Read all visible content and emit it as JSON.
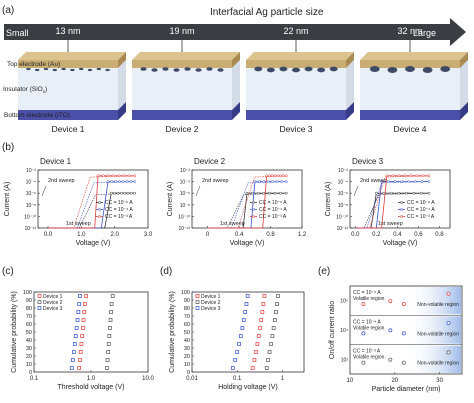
{
  "panel_a": {
    "letter": "(a)",
    "header": "Interfacial Ag particle size",
    "small": "Small",
    "large": "Large",
    "devices": [
      {
        "label": "Device 1",
        "size": "13 nm",
        "particles": 10
      },
      {
        "label": "Device 2",
        "size": "19 nm",
        "particles": 8
      },
      {
        "label": "Device 3",
        "size": "22 nm",
        "particles": 7
      },
      {
        "label": "Device 4",
        "size": "32 nm",
        "particles": 5
      }
    ],
    "layers": {
      "top": "Top electrode (Au)",
      "insulator_pre": "Insulator (SiO",
      "insulator_sub": "x",
      "insulator_post": ")",
      "bottom": "Bottom electrode (ITO)"
    },
    "colors": {
      "arrow": "#3a3d42",
      "au": "#c9ad73",
      "insulator": "#e9eff6",
      "ito": "#4a4fa8",
      "particle": "#3e4a66"
    }
  },
  "panel_b": {
    "letter": "(b)",
    "ylabel": "Current (A)",
    "xlabel": "Voltage (V)",
    "yticks": [
      "10⁻²",
      "10⁻⁴",
      "10⁻⁶",
      "10⁻⁸",
      "10⁻¹⁰",
      "10⁻¹²"
    ],
    "annot_2nd": "2nd sweep",
    "annot_1st": "1st sweep",
    "legend": [
      "CC = 10⁻⁶ A",
      "CC = 10⁻⁴ A",
      "CC = 10⁻³ A"
    ],
    "series_colors": [
      "#333333",
      "#3350cc",
      "#e03a3a"
    ],
    "plots": [
      {
        "title": "Device 1",
        "xmax": 3,
        "xticks": [
          "0.0",
          "1.0",
          "2.0",
          "3.0"
        ]
      },
      {
        "title": "Device 2",
        "xmax": 1.2,
        "xticks": [
          "0",
          "0.4",
          "0.8",
          "1.2"
        ]
      },
      {
        "title": "Device 3",
        "xmax": 1.0,
        "xticks": [
          "0.0",
          "0.2",
          "0.4",
          "0.6",
          "0.8"
        ]
      }
    ]
  },
  "panel_c": {
    "letter": "(c)",
    "ylabel": "Cumulative probability (%)",
    "xlabel": "Threshold voltage (V)",
    "xticks": [
      "0.1",
      "1.0",
      "10.0"
    ],
    "yticks": [
      "100",
      "90",
      "80",
      "70",
      "60",
      "50",
      "40",
      "30",
      "20",
      "10",
      "0"
    ],
    "legend": [
      "Device 1",
      "Device 2",
      "Device 3"
    ],
    "colors": [
      "#e03a3a",
      "#555555",
      "#3350cc"
    ]
  },
  "panel_d": {
    "letter": "(d)",
    "ylabel": "Cumulative probability (%)",
    "xlabel": "Holding voltage (V)",
    "xticks": [
      "0.01",
      "0.1",
      "1"
    ],
    "yticks": [
      "100",
      "90",
      "80",
      "70",
      "60",
      "50",
      "40",
      "30",
      "20",
      "10",
      "0"
    ],
    "legend": [
      "Device 1",
      "Device 2",
      "Device 3"
    ],
    "colors": [
      "#e03a3a",
      "#555555",
      "#3350cc"
    ]
  },
  "panel_e": {
    "letter": "(e)",
    "ylabel": "On/off current ratio",
    "xlabel": "Particle diameter (nm)",
    "xticks": [
      "10",
      "20",
      "30"
    ],
    "rows": [
      {
        "cc": "CC = 10⁻⁶ A",
        "volatile": "Volatile region",
        "nonvolatile": "Non-volatile region",
        "ytick": "10⁵"
      },
      {
        "cc": "CC = 10⁻⁴ A",
        "volatile": "Volatile region",
        "nonvolatile": "Non-volatile region",
        "ytick": "10⁴"
      },
      {
        "cc": "CC = 10⁻³ A",
        "volatile": "Volatile region",
        "nonvolatile": "Non-volatile region",
        "ytick": "10²"
      }
    ]
  },
  "chart_data": [
    {
      "type": "line",
      "title": "Device 1",
      "xlabel": "Voltage (V)",
      "ylabel": "Current (A)",
      "xlim": [
        -0.3,
        3.0
      ],
      "ylim": [
        1e-12,
        0.01
      ],
      "yscale": "log",
      "series": [
        {
          "name": "CC = 10⁻⁶ A",
          "x": [
            0,
            1.7,
            1.9,
            2.4,
            2.6
          ],
          "y": [
            1e-12,
            1e-12,
            1e-06,
            1e-06,
            1e-06
          ]
        },
        {
          "name": "CC = 10⁻⁴ A",
          "x": [
            0,
            1.6,
            1.8,
            2.4,
            2.6
          ],
          "y": [
            1e-12,
            1e-12,
            0.0001,
            0.0001,
            0.0001
          ]
        },
        {
          "name": "CC = 10⁻³ A",
          "x": [
            0,
            1.4,
            1.5,
            2.4,
            2.6
          ],
          "y": [
            1e-12,
            1e-12,
            0.001,
            0.001,
            0.001
          ]
        }
      ]
    },
    {
      "type": "line",
      "title": "Device 2",
      "xlabel": "Voltage (V)",
      "ylabel": "Current (A)",
      "xlim": [
        -0.2,
        1.2
      ],
      "ylim": [
        1e-12,
        0.01
      ],
      "yscale": "log",
      "series": [
        {
          "name": "CC = 10⁻⁶ A",
          "x": [
            0,
            0.45,
            0.5,
            0.9,
            1.0
          ],
          "y": [
            1e-12,
            1e-12,
            1e-06,
            1e-06,
            1e-06
          ]
        },
        {
          "name": "CC = 10⁻⁴ A",
          "x": [
            0,
            0.55,
            0.6,
            0.9,
            1.0
          ],
          "y": [
            1e-12,
            1e-12,
            0.0001,
            0.0001,
            0.0001
          ]
        },
        {
          "name": "CC = 10⁻³ A",
          "x": [
            0,
            0.7,
            0.75,
            0.9,
            1.0
          ],
          "y": [
            1e-12,
            1e-12,
            0.001,
            0.001,
            0.001
          ]
        }
      ]
    },
    {
      "type": "line",
      "title": "Device 3",
      "xlabel": "Voltage (V)",
      "ylabel": "Current (A)",
      "xlim": [
        -0.05,
        0.9
      ],
      "ylim": [
        1e-12,
        0.01
      ],
      "yscale": "log",
      "series": [
        {
          "name": "CC = 10⁻⁶ A",
          "x": [
            0,
            0.15,
            0.2,
            0.6,
            0.7
          ],
          "y": [
            1e-12,
            1e-12,
            1e-06,
            1e-06,
            1e-06
          ]
        },
        {
          "name": "CC = 10⁻⁴ A",
          "x": [
            0,
            0.2,
            0.25,
            0.6,
            0.7
          ],
          "y": [
            1e-12,
            1e-12,
            0.0001,
            0.0001,
            0.0001
          ]
        },
        {
          "name": "CC = 10⁻³ A",
          "x": [
            0,
            0.25,
            0.3,
            0.6,
            0.7
          ],
          "y": [
            1e-12,
            1e-12,
            0.001,
            0.001,
            0.001
          ]
        }
      ]
    },
    {
      "type": "scatter",
      "title": "",
      "xlabel": "Threshold voltage (V)",
      "ylabel": "Cumulative probability (%)",
      "xscale": "log",
      "xlim": [
        0.1,
        10
      ],
      "ylim": [
        0,
        100
      ],
      "series": [
        {
          "name": "Device 1",
          "x": [
            0.62,
            0.64,
            0.66,
            0.68,
            0.7,
            0.72,
            0.74,
            0.76,
            0.78,
            0.82
          ],
          "y": [
            5,
            15,
            25,
            35,
            45,
            55,
            65,
            75,
            85,
            95
          ]
        },
        {
          "name": "Device 2",
          "x": [
            1.9,
            1.95,
            2.0,
            2.05,
            2.1,
            2.15,
            2.2,
            2.25,
            2.3,
            2.4
          ],
          "y": [
            5,
            15,
            25,
            35,
            45,
            55,
            65,
            75,
            85,
            95
          ]
        },
        {
          "name": "Device 3",
          "x": [
            0.46,
            0.48,
            0.5,
            0.52,
            0.54,
            0.56,
            0.58,
            0.6,
            0.62,
            0.64
          ],
          "y": [
            5,
            15,
            25,
            35,
            45,
            55,
            65,
            75,
            85,
            95
          ]
        }
      ]
    },
    {
      "type": "scatter",
      "title": "",
      "xlabel": "Holding voltage (V)",
      "ylabel": "Cumulative probability (%)",
      "xscale": "log",
      "xlim": [
        0.01,
        3
      ],
      "ylim": [
        0,
        100
      ],
      "series": [
        {
          "name": "Device 1",
          "x": [
            0.22,
            0.24,
            0.26,
            0.28,
            0.3,
            0.32,
            0.34,
            0.36,
            0.38,
            0.4
          ],
          "y": [
            5,
            15,
            25,
            35,
            45,
            55,
            65,
            75,
            85,
            95
          ]
        },
        {
          "name": "Device 2",
          "x": [
            0.45,
            0.48,
            0.52,
            0.56,
            0.6,
            0.64,
            0.68,
            0.72,
            0.76,
            0.8
          ],
          "y": [
            5,
            15,
            25,
            35,
            45,
            55,
            65,
            75,
            85,
            95
          ]
        },
        {
          "name": "Device 3",
          "x": [
            0.08,
            0.09,
            0.1,
            0.11,
            0.12,
            0.13,
            0.14,
            0.15,
            0.16,
            0.17
          ],
          "y": [
            5,
            15,
            25,
            35,
            45,
            55,
            65,
            75,
            85,
            95
          ]
        }
      ]
    },
    {
      "type": "scatter",
      "title": "",
      "xlabel": "Particle diameter (nm)",
      "ylabel": "On/off current ratio",
      "xlim": [
        10,
        35
      ],
      "series": [
        {
          "name": "CC = 10⁻⁶ A",
          "x": [
            13,
            19,
            22,
            32
          ],
          "y": [
            30000.0,
            20000.0,
            20000.0,
            100000.0
          ]
        },
        {
          "name": "CC = 10⁻⁴ A",
          "x": [
            13,
            19,
            22,
            32
          ],
          "y": [
            10000.0,
            10000.0,
            10000.0,
            100000.0
          ]
        },
        {
          "name": "CC = 10⁻³ A",
          "x": [
            13,
            19,
            22,
            32
          ],
          "y": [
            100.0,
            100.0,
            100.0,
            10000.0
          ]
        }
      ]
    }
  ]
}
